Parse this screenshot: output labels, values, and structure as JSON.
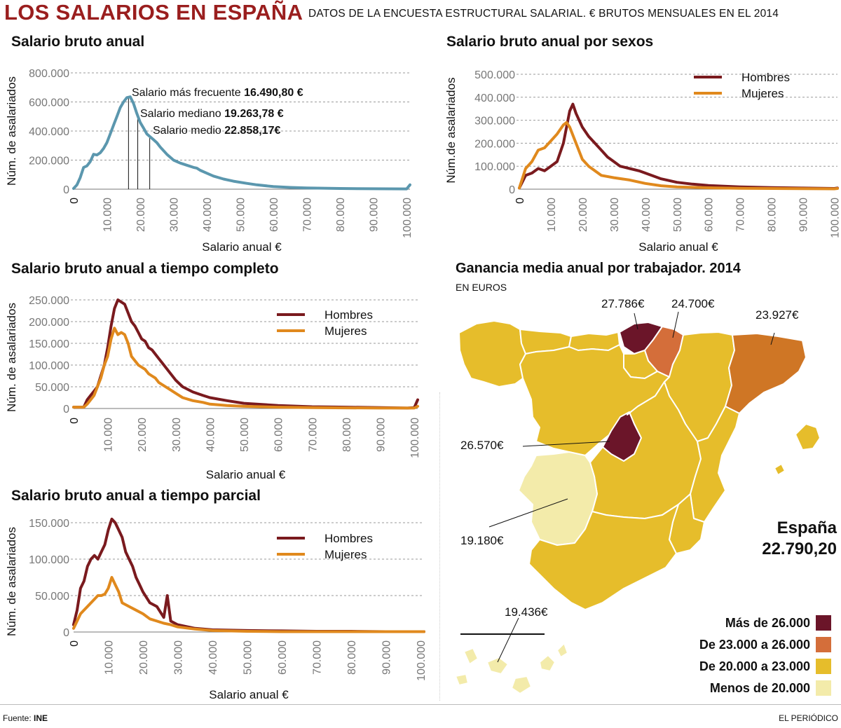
{
  "header": {
    "title": "LOS SALARIOS EN ESPAÑA",
    "subtitle": "DATOS DE LA ENCUESTA ESTRUCTURAL SALARIAL.  € BRUTOS MENSUALES EN EL 2014"
  },
  "chart_data": [
    {
      "id": "anual",
      "type": "line",
      "title": "Salario bruto anual",
      "xlabel": "Salario anual €",
      "ylabel": "Núm. de asalariados",
      "xlim": [
        0,
        101000
      ],
      "ylim": [
        0,
        800000
      ],
      "xticks": [
        0,
        10000,
        20000,
        30000,
        40000,
        50000,
        60000,
        70000,
        80000,
        90000,
        100000
      ],
      "xtick_labels": [
        "0",
        "10.000",
        "20.000",
        "30.000",
        "40.000",
        "50.000",
        "60.000",
        "70.000",
        "80.000",
        "90.000",
        "100.000"
      ],
      "yticks": [
        0,
        200000,
        400000,
        600000,
        800000
      ],
      "ytick_labels": [
        "0",
        "200.000",
        "400.000",
        "600.000",
        "800.000"
      ],
      "grid": true,
      "series": [
        {
          "name": "Total",
          "color": "#5b97ae",
          "x": [
            0,
            1000,
            2000,
            3000,
            4000,
            5000,
            6000,
            7000,
            8000,
            9000,
            10000,
            11000,
            12000,
            13000,
            14000,
            15000,
            16000,
            17000,
            18000,
            19000,
            20000,
            21000,
            22000,
            23000,
            24000,
            25000,
            26000,
            28000,
            30000,
            32000,
            34000,
            36000,
            37000,
            38000,
            40000,
            42000,
            45000,
            48000,
            52000,
            55000,
            60000,
            65000,
            70000,
            80000,
            90000,
            100000,
            101000
          ],
          "y": [
            5000,
            30000,
            80000,
            150000,
            160000,
            190000,
            240000,
            235000,
            250000,
            280000,
            320000,
            380000,
            440000,
            500000,
            560000,
            600000,
            630000,
            635000,
            590000,
            520000,
            460000,
            420000,
            380000,
            360000,
            340000,
            320000,
            290000,
            240000,
            200000,
            180000,
            165000,
            150000,
            145000,
            130000,
            110000,
            90000,
            70000,
            55000,
            40000,
            30000,
            18000,
            12000,
            8000,
            5000,
            3000,
            2000,
            30000
          ]
        }
      ],
      "markers": [
        {
          "x": 16490.8,
          "y": 635000
        },
        {
          "x": 19263.78,
          "y": 520000
        },
        {
          "x": 22858.17,
          "y": 370000
        }
      ],
      "annotations": [
        {
          "label": "Salario más frecuente ",
          "value": "16.490,80 €"
        },
        {
          "label": "Salario mediano ",
          "value": "19.263,78 €"
        },
        {
          "label": "Salario medio ",
          "value": "22.858,17€"
        }
      ]
    },
    {
      "id": "sexos",
      "type": "line",
      "title": "Salario bruto anual por sexos",
      "xlabel": "Salario anual €",
      "ylabel": "Núm.de asalariados",
      "xlim": [
        0,
        101000
      ],
      "ylim": [
        0,
        500000
      ],
      "xticks": [
        0,
        10000,
        20000,
        30000,
        40000,
        50000,
        60000,
        70000,
        80000,
        90000,
        100000
      ],
      "xtick_labels": [
        "0",
        "10.000",
        "20.000",
        "30.000",
        "40.000",
        "50.000",
        "60.000",
        "70.000",
        "80.000",
        "90.000",
        "100.000"
      ],
      "yticks": [
        0,
        100000,
        200000,
        300000,
        400000,
        500000
      ],
      "ytick_labels": [
        "0",
        "100.000",
        "200.000",
        "300.000",
        "400.000",
        "500.000"
      ],
      "grid": true,
      "legend": [
        "Hombres",
        "Mujeres"
      ],
      "series": [
        {
          "name": "Hombres",
          "color": "#7a1a1e",
          "x": [
            0,
            2000,
            4000,
            6000,
            8000,
            10000,
            12000,
            14000,
            16000,
            17000,
            18000,
            20000,
            22000,
            24000,
            26000,
            28000,
            30000,
            32000,
            35000,
            38000,
            40000,
            45000,
            50000,
            55000,
            60000,
            70000,
            80000,
            90000,
            100000,
            101000
          ],
          "y": [
            5000,
            60000,
            70000,
            90000,
            80000,
            100000,
            120000,
            200000,
            340000,
            370000,
            330000,
            270000,
            230000,
            200000,
            170000,
            140000,
            120000,
            100000,
            90000,
            80000,
            70000,
            45000,
            30000,
            22000,
            16000,
            10000,
            7000,
            5000,
            3000,
            5000
          ]
        },
        {
          "name": "Mujeres",
          "color": "#e0891d",
          "x": [
            0,
            2000,
            4000,
            6000,
            8000,
            10000,
            12000,
            14000,
            15000,
            16000,
            18000,
            20000,
            22000,
            24000,
            26000,
            30000,
            35000,
            40000,
            45000,
            50000,
            60000,
            70000,
            80000,
            90000,
            100000,
            101000
          ],
          "y": [
            5000,
            90000,
            120000,
            170000,
            180000,
            210000,
            240000,
            280000,
            290000,
            270000,
            200000,
            130000,
            100000,
            80000,
            60000,
            50000,
            40000,
            25000,
            15000,
            10000,
            6000,
            4000,
            3000,
            2000,
            1500,
            3000
          ]
        }
      ]
    },
    {
      "id": "completo",
      "type": "line",
      "title": "Salario bruto anual a tiempo completo",
      "xlabel": "Salario anual €",
      "ylabel": "Núm. de asalariados",
      "xlim": [
        0,
        101000
      ],
      "ylim": [
        0,
        250000
      ],
      "xticks": [
        0,
        10000,
        20000,
        30000,
        40000,
        50000,
        60000,
        70000,
        80000,
        90000,
        100000
      ],
      "xtick_labels": [
        "0",
        "10.000",
        "20.000",
        "30.000",
        "40.000",
        "50.000",
        "60.000",
        "70.000",
        "80.000",
        "90.000",
        "100.000"
      ],
      "yticks": [
        0,
        50000,
        100000,
        150000,
        200000,
        250000
      ],
      "ytick_labels": [
        "0",
        "50.000",
        "100.000",
        "150.000",
        "200.000",
        "250.000"
      ],
      "grid": true,
      "legend": [
        "Hombres",
        "Mujeres"
      ],
      "series": [
        {
          "name": "Hombres",
          "color": "#7a1a1e",
          "x": [
            0,
            3000,
            4000,
            5000,
            6000,
            7000,
            8000,
            9000,
            10000,
            11000,
            12000,
            13000,
            14000,
            15000,
            16000,
            17000,
            18000,
            19000,
            20000,
            21000,
            22000,
            23000,
            24000,
            25000,
            26000,
            28000,
            30000,
            32000,
            35000,
            38000,
            40000,
            45000,
            50000,
            60000,
            70000,
            80000,
            90000,
            98000,
            100000,
            101000
          ],
          "y": [
            3000,
            3000,
            20000,
            30000,
            40000,
            50000,
            75000,
            100000,
            140000,
            190000,
            230000,
            250000,
            245000,
            240000,
            220000,
            200000,
            190000,
            175000,
            160000,
            155000,
            140000,
            135000,
            125000,
            115000,
            105000,
            85000,
            65000,
            50000,
            38000,
            30000,
            25000,
            18000,
            12000,
            7000,
            4000,
            3000,
            2000,
            1000,
            2000,
            20000
          ]
        },
        {
          "name": "Mujeres",
          "color": "#e0891d",
          "x": [
            0,
            3000,
            4000,
            5000,
            6000,
            7000,
            8000,
            9000,
            10000,
            11000,
            12000,
            13000,
            14000,
            15000,
            16000,
            17000,
            18000,
            19000,
            20000,
            21000,
            22000,
            23000,
            24000,
            25000,
            26000,
            28000,
            30000,
            32000,
            35000,
            38000,
            40000,
            45000,
            50000,
            60000,
            70000,
            80000,
            90000,
            100000,
            101000
          ],
          "y": [
            3000,
            3000,
            10000,
            20000,
            30000,
            50000,
            70000,
            100000,
            120000,
            160000,
            185000,
            170000,
            175000,
            170000,
            150000,
            120000,
            110000,
            100000,
            95000,
            90000,
            80000,
            75000,
            70000,
            60000,
            55000,
            45000,
            35000,
            25000,
            18000,
            14000,
            10000,
            7000,
            5000,
            3000,
            2000,
            1500,
            1000,
            1000,
            5000
          ]
        }
      ]
    },
    {
      "id": "parcial",
      "type": "line",
      "title": "Salario bruto anual a tiempo parcial",
      "xlabel": "Salario anual €",
      "ylabel": "Núm. de asalariados",
      "xlim": [
        0,
        101000
      ],
      "ylim": [
        0,
        150000
      ],
      "xticks": [
        0,
        10000,
        20000,
        30000,
        40000,
        50000,
        60000,
        70000,
        80000,
        90000,
        100000
      ],
      "xtick_labels": [
        "0",
        "10.000",
        "20.000",
        "30.000",
        "40.000",
        "50.000",
        "60.000",
        "70.000",
        "80.000",
        "90.000",
        "100.000"
      ],
      "yticks": [
        0,
        50000,
        100000,
        150000
      ],
      "ytick_labels": [
        "0",
        "50.000",
        "100.000",
        "150.000"
      ],
      "grid": true,
      "legend": [
        "Hombres",
        "Mujeres"
      ],
      "series": [
        {
          "name": "Hombres",
          "color": "#7a1a1e",
          "x": [
            0,
            1000,
            2000,
            3000,
            4000,
            5000,
            6000,
            7000,
            8000,
            9000,
            10000,
            11000,
            12000,
            13000,
            14000,
            15000,
            16000,
            17000,
            18000,
            19000,
            20000,
            22000,
            24000,
            26000,
            27000,
            28000,
            30000,
            32000,
            35000,
            40000,
            50000,
            60000,
            70000,
            80000,
            90000,
            100000,
            101000
          ],
          "y": [
            10000,
            30000,
            60000,
            70000,
            90000,
            100000,
            105000,
            100000,
            110000,
            120000,
            140000,
            155000,
            150000,
            140000,
            130000,
            110000,
            100000,
            90000,
            75000,
            65000,
            55000,
            40000,
            35000,
            20000,
            50000,
            15000,
            10000,
            8000,
            5000,
            3000,
            2000,
            1500,
            1000,
            1000,
            500,
            500,
            500
          ]
        },
        {
          "name": "Mujeres",
          "color": "#e0891d",
          "x": [
            0,
            1000,
            2000,
            3000,
            4000,
            5000,
            6000,
            7000,
            8000,
            9000,
            10000,
            11000,
            12000,
            13000,
            14000,
            16000,
            18000,
            20000,
            22000,
            24000,
            26000,
            28000,
            30000,
            35000,
            40000,
            50000,
            60000,
            70000,
            80000,
            90000,
            100000,
            101000
          ],
          "y": [
            5000,
            15000,
            25000,
            30000,
            35000,
            40000,
            45000,
            50000,
            50000,
            52000,
            60000,
            75000,
            65000,
            55000,
            40000,
            35000,
            30000,
            25000,
            18000,
            15000,
            12000,
            10000,
            7000,
            4000,
            2000,
            1000,
            500,
            500,
            500,
            500,
            500,
            500
          ]
        }
      ]
    }
  ],
  "map": {
    "title": "Ganancia media anual por trabajador. 2014",
    "subtitle": "EN EUROS",
    "callouts": [
      "27.786€",
      "24.700€",
      "23.927€",
      "26.570€",
      "19.180€",
      "19.436€"
    ],
    "spain_label": "España",
    "spain_value": "22.790,20",
    "legend": [
      {
        "label": "Más de 26.000",
        "color": "#6b1529"
      },
      {
        "label": "De 23.000 a 26.000",
        "color": "#d46e3a"
      },
      {
        "label": "De 20.000 a 23.000",
        "color": "#e6bd2b"
      },
      {
        "label": "Menos de 20.000",
        "color": "#f3ebaa"
      }
    ],
    "colors": {
      "high": "#6b1529",
      "midhigh": "#d46e3a",
      "catalonia": "#cf7625",
      "mid": "#e6bd2b",
      "low": "#f3ebaa"
    }
  },
  "footer": {
    "source_label": "Fuente: ",
    "source_value": "INE",
    "brand": "EL PERIÓDICO"
  }
}
